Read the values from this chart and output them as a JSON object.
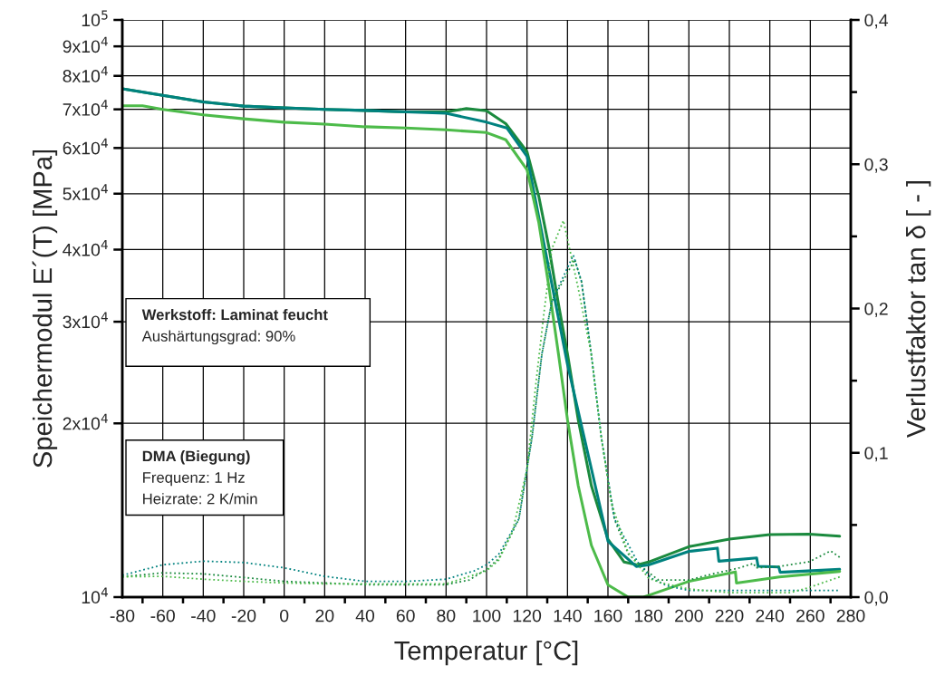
{
  "chart_data": {
    "type": "line",
    "xlabel": "Temperatur [°C]",
    "ylabel": "Speichermodul E´(T) [MPa]",
    "y2label": "Verlustfaktor tan δ [ - ]",
    "log": "y",
    "grid": true,
    "legend": false,
    "xlim": [
      -80,
      280
    ],
    "xticks": [
      {
        "value": -80,
        "label": "-80"
      },
      {
        "value": -70,
        "label": null
      },
      {
        "value": -60,
        "label": "-60"
      },
      {
        "value": -50,
        "label": null
      },
      {
        "value": -40,
        "label": "-40"
      },
      {
        "value": -30,
        "label": null
      },
      {
        "value": -20,
        "label": "-20"
      },
      {
        "value": -10,
        "label": null
      },
      0,
      {
        "value": 10,
        "label": null
      },
      20,
      {
        "value": 30,
        "label": null
      },
      40,
      {
        "value": 50,
        "label": null
      },
      60,
      {
        "value": 70,
        "label": null
      },
      80,
      {
        "value": 90,
        "label": null
      },
      100,
      {
        "value": 110,
        "label": null
      },
      120,
      {
        "value": 130,
        "label": null
      },
      140,
      {
        "value": 150,
        "label": null
      },
      160,
      {
        "value": 170,
        "label": null
      },
      180,
      {
        "value": 190,
        "label": null
      },
      200,
      {
        "value": 210,
        "label": null
      },
      220,
      {
        "value": 230,
        "label": null
      },
      240,
      {
        "value": 250,
        "label": null
      },
      260,
      {
        "value": 270,
        "label": null
      },
      280
    ],
    "ylim": [
      10000,
      100000
    ],
    "yticks": [
      {
        "value": 10000,
        "label": "10$^{4}$"
      },
      {
        "value": 20000,
        "label": "2x10$^{4}$"
      },
      {
        "value": 30000,
        "label": "3x10$^{4}$"
      },
      {
        "value": 40000,
        "label": "4x10$^{4}$"
      },
      {
        "value": 50000,
        "label": "5x10$^{4}$"
      },
      {
        "value": 60000,
        "label": "6x10$^{4}$"
      },
      {
        "value": 70000,
        "label": "7x10$^{4}$"
      },
      {
        "value": 80000,
        "label": "8x10$^{4}$"
      },
      {
        "value": 90000,
        "label": "9x10$^{4}$"
      },
      {
        "value": 100000,
        "label": "10$^{5}$"
      }
    ],
    "y2lim": [
      0,
      0.4
    ],
    "y2ticks": [
      {
        "value": 0,
        "label": "0,0"
      },
      {
        "value": 0.05,
        "label": null
      },
      {
        "value": 0.1,
        "label": "0,1"
      },
      {
        "value": 0.15,
        "label": null
      },
      {
        "value": 0.2,
        "label": "0,2"
      },
      {
        "value": 0.25,
        "label": null
      },
      {
        "value": 0.3,
        "label": "0,3"
      },
      {
        "value": 0.35,
        "label": null
      },
      {
        "value": 0.4,
        "label": "0,4"
      }
    ],
    "series": [
      {
        "color": "#1b8a3e",
        "line_style": "solid",
        "x": [
          -80,
          -60,
          -40,
          -20,
          0,
          20,
          40,
          60,
          80,
          90,
          100,
          109.5,
          120,
          125.8,
          130.7,
          135.6,
          140,
          145.3,
          151.8,
          160,
          168,
          174.6,
          180,
          200,
          220,
          240,
          259.4,
          274.5
        ],
        "values": [
          76000,
          74000,
          72100,
          70900,
          70400,
          70000,
          69700,
          69300,
          69300,
          70200,
          69600,
          66100,
          59100,
          49500,
          40600,
          32100,
          26400,
          20300,
          15600,
          12600,
          11500,
          11370,
          11500,
          12230,
          12600,
          12830,
          12860,
          12750
        ]
      },
      {
        "color": "#00827f",
        "line_style": "solid",
        "x": [
          -80,
          -60,
          -40,
          -20,
          0,
          20,
          40,
          60,
          80,
          100,
          110,
          120,
          140,
          160,
          174,
          180,
          200,
          214.1,
          214.8,
          233.5,
          234.2,
          244.4,
          245.1,
          274.5
        ],
        "values": [
          76000,
          74000,
          72100,
          70900,
          70400,
          70000,
          69700,
          69300,
          68900,
          66500,
          65000,
          58000,
          25300,
          12500,
          11300,
          11370,
          12000,
          12160,
          11540,
          11690,
          11310,
          11280,
          11040,
          11170
        ]
      },
      {
        "color": "#4dbb4a",
        "line_style": "solid",
        "x": [
          -80,
          -70,
          -60,
          -40,
          -20,
          0,
          20,
          40,
          60,
          80,
          100,
          109.5,
          120,
          125.8,
          130.7,
          135.6,
          140,
          145.3,
          151.8,
          160,
          170,
          177.5,
          180,
          200,
          223,
          223.5,
          244.7,
          274.5
        ],
        "values": [
          71000,
          71000,
          70000,
          68500,
          67400,
          66500,
          66000,
          65300,
          65000,
          64500,
          63800,
          62000,
          55000,
          44600,
          34700,
          26300,
          20300,
          15600,
          12300,
          10500,
          10000,
          10000,
          10070,
          10650,
          11060,
          10580,
          10840,
          11080
        ]
      },
      {
        "axis": "y2",
        "color": "#1b8a3e",
        "line_style": "dotted",
        "x": [
          -80,
          -60,
          -40,
          -20,
          0,
          20,
          40,
          60,
          80,
          91.5,
          100,
          106,
          116,
          122.5,
          127.3,
          132.3,
          143.6,
          147,
          151.8,
          156.7,
          163.2,
          170,
          179,
          185,
          200,
          211.8,
          225,
          232,
          233,
          244.7,
          259.5,
          270,
          274.5
        ],
        "values": [
          0.0141,
          0.0168,
          0.0161,
          0.0136,
          0.0109,
          0.0098,
          0.0086,
          0.0086,
          0.0086,
          0.0119,
          0.0193,
          0.0266,
          0.054,
          0.111,
          0.168,
          0.205,
          0.234,
          0.218,
          0.168,
          0.111,
          0.054,
          0.03,
          0.0182,
          0.0119,
          0.0119,
          0.0161,
          0.0203,
          0.0234,
          0.0203,
          0.0213,
          0.0245,
          0.032,
          0.0276
        ]
      },
      {
        "axis": "y2",
        "color": "#00827f",
        "line_style": "dotted",
        "x": [
          -80,
          -60,
          -40,
          -20,
          0,
          20,
          40,
          60,
          80,
          93.9,
          100,
          106,
          116,
          122.5,
          127.3,
          132.3,
          142.9,
          147,
          151.8,
          156.7,
          163.2,
          174.6,
          181.3,
          189.5,
          200,
          240,
          274.5
        ],
        "values": [
          0.0151,
          0.0224,
          0.0249,
          0.024,
          0.0203,
          0.0144,
          0.0109,
          0.0109,
          0.0124,
          0.0182,
          0.0224,
          0.0297,
          0.0542,
          0.111,
          0.168,
          0.205,
          0.237,
          0.2185,
          0.168,
          0.111,
          0.0542,
          0.0245,
          0.0132,
          0.0077,
          0.0046,
          0.0046,
          0.0046
        ]
      },
      {
        "axis": "y2",
        "color": "#4dbb4a",
        "line_style": "dotted",
        "x": [
          -80,
          -60,
          -40,
          -20,
          0,
          20,
          40,
          60,
          80,
          100,
          106,
          112.8,
          120,
          124.2,
          128.3,
          132.3,
          138,
          145.3,
          151.8,
          156.7,
          161.6,
          169.8,
          180,
          186,
          200,
          220,
          250,
          259.5,
          274.5
        ],
        "values": [
          0.0141,
          0.0144,
          0.0124,
          0.0109,
          0.0098,
          0.0092,
          0.0092,
          0.0092,
          0.0092,
          0.0182,
          0.0256,
          0.0452,
          0.0885,
          0.1457,
          0.196,
          0.2415,
          0.261,
          0.214,
          0.168,
          0.111,
          0.0656,
          0.0314,
          0.0132,
          0.01,
          0.0056,
          0.0031,
          0.0031,
          0.0067,
          0.014
        ]
      }
    ],
    "annotations": [
      "Werkstoff: Laminat feucht\nAushärtungsgrad: 90%",
      "DMA (Biegung)\nFrequenz: 1 Hz\nHeizrate: 2 K/min"
    ]
  }
}
